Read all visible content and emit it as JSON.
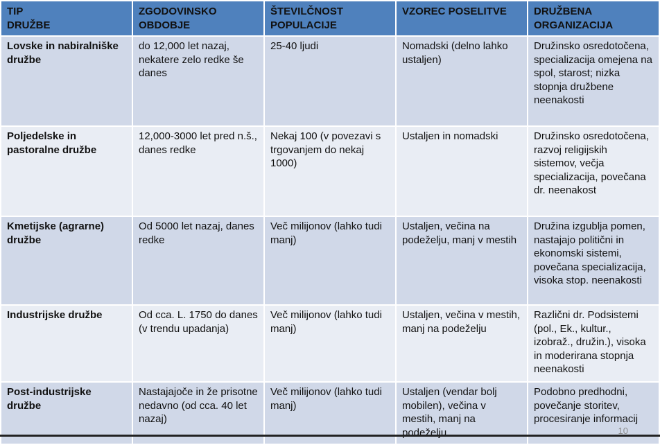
{
  "table": {
    "headers": [
      "TIP\nDRUŽBE",
      "ZGODOVINSKO OBDOBJE",
      "ŠTEVILČNOST POPULACIJE",
      "VZOREC POSELITVE",
      "DRUŽBENA ORGANIZACIJA"
    ],
    "rows": [
      [
        "Lovske in nabiralniške družbe",
        "do 12,000 let nazaj, nekatere zelo redke še danes",
        "25-40 ljudi",
        "Nomadski (delno lahko ustaljen)",
        "Družinsko osredotočena, specializacija omejena na spol, starost; nizka stopnja družbene neenakosti"
      ],
      [
        "Poljedelske in pastoralne družbe",
        "12,000-3000 let pred n.š., danes redke",
        "Nekaj 100 (v povezavi s trgovanjem do nekaj 1000)",
        "Ustaljen in nomadski",
        "Družinsko osredotočena, razvoj religijskih sistemov, večja specializacija, povečana dr. neenakost"
      ],
      [
        "Kmetijske (agrarne) družbe",
        "Od 5000 let nazaj, danes redke",
        "Več milijonov (lahko tudi manj)",
        "Ustaljen, večina na podeželju, manj v mestih",
        "Družina izgublja pomen, nastajajo politični in ekonomski sistemi, povečana specializacija, visoka stop. neenakosti"
      ],
      [
        "Industrijske družbe",
        "Od cca. L. 1750 do danes (v trendu upadanja)",
        "Več milijonov (lahko tudi manj)",
        "Ustaljen, večina v mestih, manj na podeželju",
        "Različni dr. Podsistemi (pol., Ek., kultur., izobraž., družin.), visoka in moderirana stopnja neenakosti"
      ],
      [
        "Post-industrijske družbe",
        "Nastajajoče in že prisotne nedavno (od cca. 40 let nazaj)",
        "Več milijonov (lahko tudi manj)",
        "Ustaljen (vendar bolj mobilen), večina v mestih, manj na podeželju",
        "Podobno predhodni, povečanje storitev, procesiranje informacij"
      ]
    ]
  },
  "page_number": "10",
  "colors": {
    "header": "#4f81bd",
    "row_odd": "#d0d8e8",
    "row_even": "#e9edf4"
  }
}
